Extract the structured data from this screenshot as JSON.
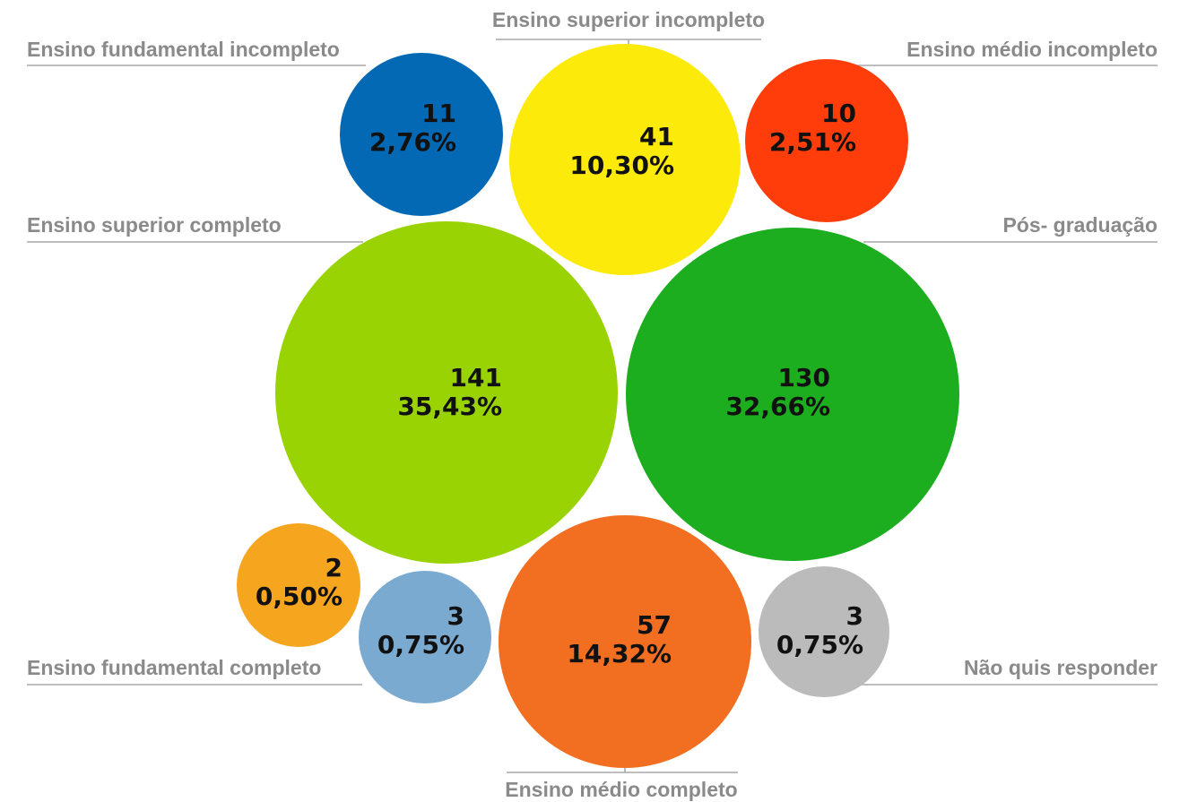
{
  "chart_data": {
    "type": "bubble",
    "series": [
      {
        "category": "Ensino fundamental incompleto",
        "count": 11,
        "count_label": "11",
        "percent_label": "2,76%",
        "color": "#0469B5"
      },
      {
        "category": "Ensino superior incompleto",
        "count": 41,
        "count_label": "41",
        "percent_label": "10,30%",
        "color": "#FBEA0A"
      },
      {
        "category": "Ensino médio incompleto",
        "count": 10,
        "count_label": "10",
        "percent_label": "2,51%",
        "color": "#FF3D0A"
      },
      {
        "category": "Ensino superior completo",
        "count": 141,
        "count_label": "141",
        "percent_label": "35,43%",
        "color": "#9AD303"
      },
      {
        "category": "Pós- graduação",
        "count": 130,
        "count_label": "130",
        "percent_label": "32,66%",
        "color": "#1CAE1E"
      },
      {
        "category": "",
        "count": 2,
        "count_label": "2",
        "percent_label": "0,50%",
        "color": "#F6A51E"
      },
      {
        "category": "Ensino fundamental completo",
        "count": 3,
        "count_label": "3",
        "percent_label": "0,75%",
        "color": "#7AAAD0"
      },
      {
        "category": "Ensino médio completo",
        "count": 57,
        "count_label": "57",
        "percent_label": "14,32%",
        "color": "#F26F21"
      },
      {
        "category": "Não quis responder",
        "count": 3,
        "count_label": "3",
        "percent_label": "0,75%",
        "color": "#BBBBBB"
      }
    ]
  }
}
